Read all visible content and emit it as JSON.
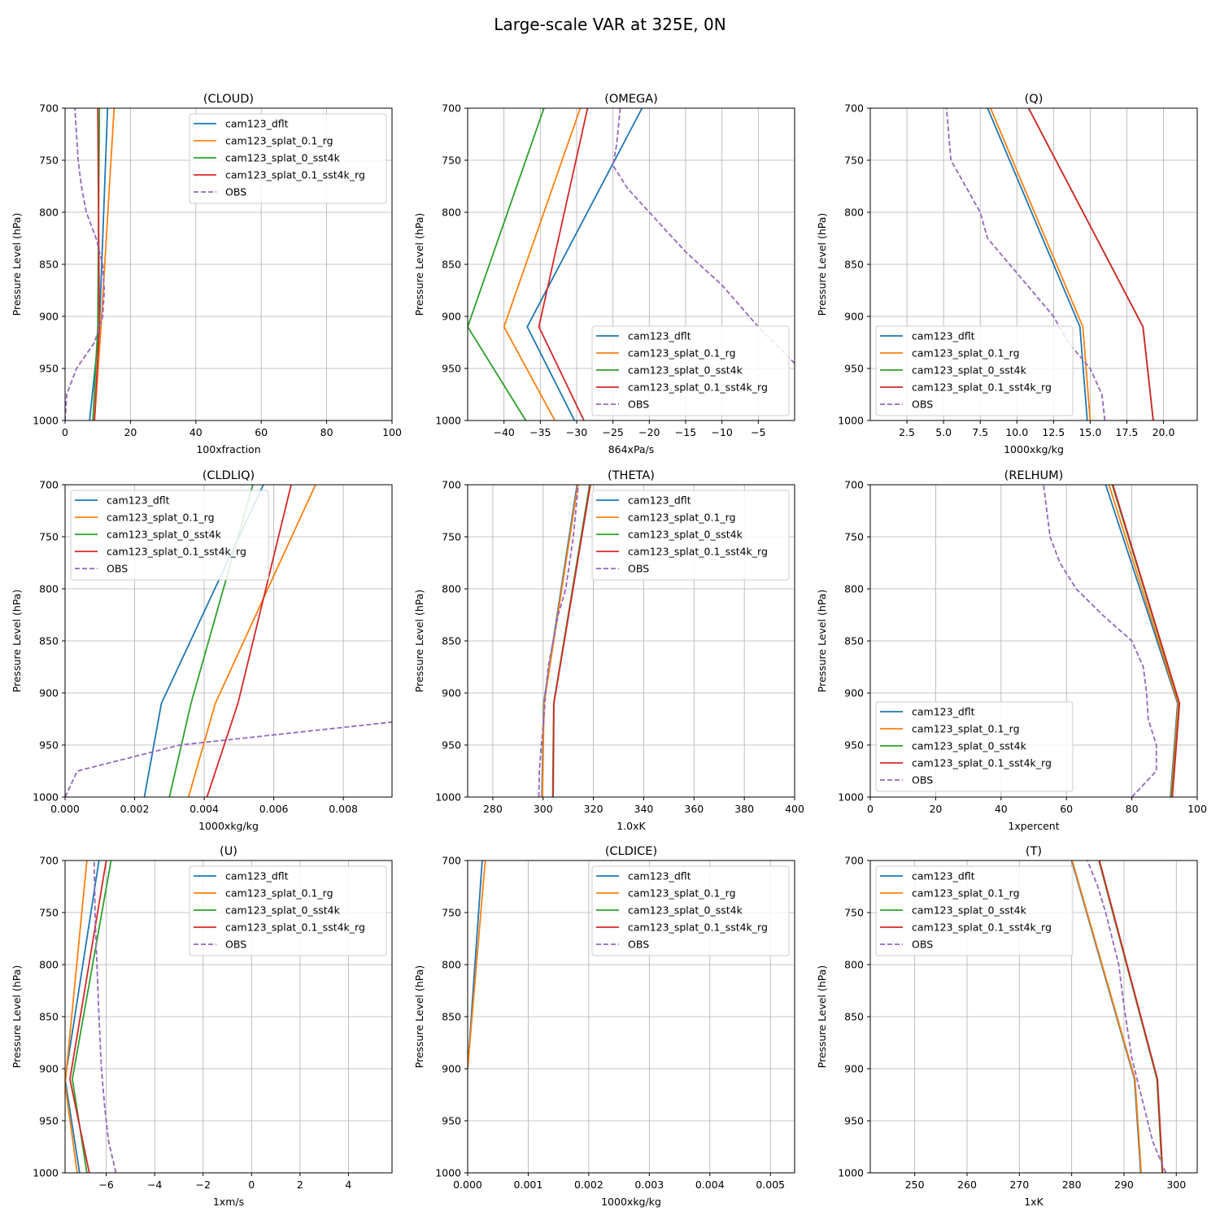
{
  "suptitle": "Large-scale VAR at 325E, 0N",
  "colors": {
    "cam123_dflt": "#1f77b4",
    "cam123_splat_0.1_rg": "#ff7f0e",
    "cam123_splat_0_sst4k": "#2ca02c",
    "cam123_splat_0.1_sst4k_rg": "#d62728",
    "OBS": "#9467bd"
  },
  "chart_data": [
    {
      "type": "line",
      "title": "(CLOUD)",
      "xlabel": "100xfraction",
      "ylabel": "Pressure Level (hPa)",
      "xlim": [
        0,
        100
      ],
      "ylim": [
        1000,
        700
      ],
      "xticks": [
        0,
        20,
        40,
        60,
        80,
        100
      ],
      "xticklabels": [
        "0",
        "20",
        "40",
        "60",
        "80",
        "100"
      ],
      "yticks": [
        700,
        750,
        800,
        850,
        900,
        950,
        1000
      ],
      "grid": true,
      "legend": "upper right",
      "series": [
        {
          "name": "cam123_dflt",
          "x": [
            7.5,
            10.5,
            13
          ],
          "y": [
            1000,
            910,
            700
          ]
        },
        {
          "name": "cam123_splat_0.1_rg",
          "x": [
            9,
            11,
            15
          ],
          "y": [
            1000,
            910,
            700
          ]
        },
        {
          "name": "cam123_splat_0_sst4k",
          "x": [
            8.5,
            10,
            10.5
          ],
          "y": [
            1000,
            910,
            700
          ]
        },
        {
          "name": "cam123_splat_0.1_sst4k_rg",
          "x": [
            9,
            10.5,
            10
          ],
          "y": [
            1000,
            910,
            700
          ]
        },
        {
          "name": "OBS",
          "x": [
            0,
            0.5,
            3.5,
            9,
            11.5,
            12,
            11.5,
            9.5,
            6.5,
            5,
            4,
            3
          ],
          "y": [
            1000,
            975,
            950,
            925,
            900,
            875,
            850,
            825,
            800,
            775,
            750,
            700
          ]
        }
      ]
    },
    {
      "type": "line",
      "title": "(OMEGA)",
      "xlabel": "864xPa/s",
      "ylabel": "Pressure Level (hPa)",
      "xlim": [
        -45,
        0
      ],
      "ylim": [
        1000,
        700
      ],
      "xticks": [
        -40,
        -35,
        -30,
        -25,
        -20,
        -15,
        -10,
        -5
      ],
      "xticklabels": [
        "−40",
        "−35",
        "−30",
        "−25",
        "−20",
        "−15",
        "−10",
        "−5"
      ],
      "yticks": [
        700,
        750,
        800,
        850,
        900,
        950,
        1000
      ],
      "grid": true,
      "legend": "lower right",
      "series": [
        {
          "name": "cam123_dflt",
          "x": [
            -30.3,
            -36.8,
            -21
          ],
          "y": [
            1000,
            910,
            700
          ]
        },
        {
          "name": "cam123_splat_0.1_rg",
          "x": [
            -33,
            -40,
            -29.5
          ],
          "y": [
            1000,
            910,
            700
          ]
        },
        {
          "name": "cam123_splat_0_sst4k",
          "x": [
            -37,
            -45,
            -34.5
          ],
          "y": [
            1000,
            910,
            700
          ]
        },
        {
          "name": "cam123_splat_0.1_sst4k_rg",
          "x": [
            -29,
            -35.2,
            -28.5
          ],
          "y": [
            1000,
            910,
            700
          ]
        },
        {
          "name": "OBS",
          "x": [
            0,
            -5,
            -10,
            -15,
            -20,
            -23,
            -25,
            -24.5,
            -24
          ],
          "y": [
            945,
            910,
            870,
            838,
            800,
            777,
            755,
            735,
            700
          ]
        }
      ]
    },
    {
      "type": "line",
      "title": "(Q)",
      "xlabel": "1000xkg/kg",
      "ylabel": "Pressure Level (hPa)",
      "xlim": [
        0,
        22.3
      ],
      "ylim": [
        1000,
        700
      ],
      "xticks": [
        2.5,
        5.0,
        7.5,
        10.0,
        12.5,
        15.0,
        17.5,
        20.0
      ],
      "xticklabels": [
        "2.5",
        "5.0",
        "7.5",
        "10.0",
        "12.5",
        "15.0",
        "17.5",
        "20.0"
      ],
      "yticks": [
        700,
        750,
        800,
        850,
        900,
        950,
        1000
      ],
      "grid": true,
      "legend": "lower left",
      "series": [
        {
          "name": "cam123_dflt",
          "x": [
            14.8,
            14.3,
            8
          ],
          "y": [
            1000,
            910,
            700
          ]
        },
        {
          "name": "cam123_splat_0.1_rg",
          "x": [
            15,
            14.5,
            8.2
          ],
          "y": [
            1000,
            910,
            700
          ]
        },
        {
          "name": "cam123_splat_0_sst4k",
          "x": [
            19.3,
            18.6,
            10.8
          ],
          "y": [
            1000,
            910,
            700
          ]
        },
        {
          "name": "cam123_splat_0.1_sst4k_rg",
          "x": [
            19.3,
            18.6,
            10.8
          ],
          "y": [
            1000,
            910,
            700
          ]
        },
        {
          "name": "OBS",
          "x": [
            16,
            15.8,
            15,
            13.5,
            12.5,
            11,
            9.5,
            8,
            7.5,
            6.5,
            5.5,
            5.2
          ],
          "y": [
            1000,
            975,
            950,
            925,
            900,
            875,
            850,
            825,
            800,
            775,
            750,
            700
          ]
        }
      ]
    },
    {
      "type": "line",
      "title": "(CLDLIQ)",
      "xlabel": "1000xkg/kg",
      "ylabel": "Pressure Level (hPa)",
      "xlim": [
        0,
        0.0094
      ],
      "ylim": [
        1000,
        700
      ],
      "xticks": [
        0,
        0.002,
        0.004,
        0.006,
        0.008
      ],
      "xticklabels": [
        "0.000",
        "0.002",
        "0.004",
        "0.006",
        "0.008"
      ],
      "yticks": [
        700,
        750,
        800,
        850,
        900,
        950,
        1000
      ],
      "grid": true,
      "legend": "upper left",
      "series": [
        {
          "name": "cam123_dflt",
          "x": [
            0.00228,
            0.00277,
            0.0057
          ],
          "y": [
            1000,
            910,
            700
          ]
        },
        {
          "name": "cam123_splat_0.1_rg",
          "x": [
            0.00355,
            0.00432,
            0.0072
          ],
          "y": [
            1000,
            910,
            700
          ]
        },
        {
          "name": "cam123_splat_0_sst4k",
          "x": [
            0.003,
            0.00362,
            0.0054
          ],
          "y": [
            1000,
            910,
            700
          ]
        },
        {
          "name": "cam123_splat_0.1_sst4k_rg",
          "x": [
            0.00408,
            0.00497,
            0.0065
          ],
          "y": [
            1000,
            910,
            700
          ]
        },
        {
          "name": "OBS",
          "x": [
            0,
            0.00035,
            0.0033,
            0.0094
          ],
          "y": [
            1000,
            975,
            950,
            928
          ]
        }
      ]
    },
    {
      "type": "line",
      "title": "(THETA)",
      "xlabel": "1.0xK",
      "ylabel": "Pressure Level (hPa)",
      "xlim": [
        270,
        400
      ],
      "ylim": [
        1000,
        700
      ],
      "xticks": [
        280,
        300,
        320,
        340,
        360,
        380,
        400
      ],
      "xticklabels": [
        "280",
        "300",
        "320",
        "340",
        "360",
        "380",
        "400"
      ],
      "yticks": [
        700,
        750,
        800,
        850,
        900,
        950,
        1000
      ],
      "grid": true,
      "legend": "upper right",
      "series": [
        {
          "name": "cam123_dflt",
          "x": [
            299.5,
            300.2,
            313.5
          ],
          "y": [
            1000,
            910,
            700
          ]
        },
        {
          "name": "cam123_splat_0.1_rg",
          "x": [
            299.7,
            300.4,
            313.8
          ],
          "y": [
            1000,
            910,
            700
          ]
        },
        {
          "name": "cam123_splat_0_sst4k",
          "x": [
            303.8,
            304.2,
            318.5
          ],
          "y": [
            1000,
            910,
            700
          ]
        },
        {
          "name": "cam123_splat_0.1_sst4k_rg",
          "x": [
            304,
            304.3,
            318.8
          ],
          "y": [
            1000,
            910,
            700
          ]
        },
        {
          "name": "OBS",
          "x": [
            298.3,
            298.5,
            299.3,
            300.3,
            301,
            302,
            304,
            306,
            309,
            312,
            314
          ],
          "y": [
            1000,
            975,
            950,
            925,
            900,
            875,
            850,
            825,
            800,
            750,
            700
          ]
        }
      ]
    },
    {
      "type": "line",
      "title": "(RELHUM)",
      "xlabel": "1xpercent",
      "ylabel": "Pressure Level (hPa)",
      "xlim": [
        0,
        100
      ],
      "ylim": [
        1000,
        700
      ],
      "xticks": [
        0,
        20,
        40,
        60,
        80,
        100
      ],
      "xticklabels": [
        "0",
        "20",
        "40",
        "60",
        "80",
        "100"
      ],
      "yticks": [
        700,
        750,
        800,
        850,
        900,
        950,
        1000
      ],
      "grid": true,
      "legend": "lower left",
      "series": [
        {
          "name": "cam123_dflt",
          "x": [
            91.8,
            94,
            72
          ],
          "y": [
            1000,
            910,
            700
          ]
        },
        {
          "name": "cam123_splat_0.1_rg",
          "x": [
            92,
            94.2,
            73
          ],
          "y": [
            1000,
            910,
            700
          ]
        },
        {
          "name": "cam123_splat_0_sst4k",
          "x": [
            92.2,
            94.5,
            74
          ],
          "y": [
            1000,
            910,
            700
          ]
        },
        {
          "name": "cam123_splat_0.1_sst4k_rg",
          "x": [
            92.4,
            94.6,
            74.2
          ],
          "y": [
            1000,
            910,
            700
          ]
        },
        {
          "name": "OBS",
          "x": [
            80,
            87.5,
            87.5,
            85,
            84.5,
            83.5,
            80,
            71,
            63,
            58,
            55,
            53
          ],
          "y": [
            1000,
            975,
            950,
            925,
            900,
            875,
            850,
            825,
            800,
            775,
            750,
            700
          ]
        }
      ]
    },
    {
      "type": "line",
      "title": "(U)",
      "xlabel": "1xm/s",
      "ylabel": "Pressure Level (hPa)",
      "xlim": [
        -7.7,
        5.8
      ],
      "ylim": [
        1000,
        700
      ],
      "xticks": [
        -6,
        -4,
        -2,
        0,
        2,
        4
      ],
      "xticklabels": [
        "−6",
        "−4",
        "−2",
        "0",
        "2",
        "4"
      ],
      "yticks": [
        700,
        750,
        800,
        850,
        900,
        950,
        1000
      ],
      "grid": true,
      "legend": "upper right",
      "series": [
        {
          "name": "cam123_dflt",
          "x": [
            -7.1,
            -7.7,
            -6.3
          ],
          "y": [
            1000,
            910,
            700
          ]
        },
        {
          "name": "cam123_splat_0.1_rg",
          "x": [
            -7.2,
            -7.7,
            -6.8
          ],
          "y": [
            1000,
            915,
            700
          ]
        },
        {
          "name": "cam123_splat_0_sst4k",
          "x": [
            -6.8,
            -7.4,
            -5.8
          ],
          "y": [
            1000,
            910,
            700
          ]
        },
        {
          "name": "cam123_splat_0.1_sst4k_rg",
          "x": [
            -6.7,
            -7.5,
            -6
          ],
          "y": [
            1000,
            910,
            700
          ]
        },
        {
          "name": "OBS",
          "x": [
            -5.6,
            -5.9,
            -6.05,
            -6.2,
            -6.3,
            -6.45,
            -6.5
          ],
          "y": [
            1000,
            970,
            940,
            900,
            850,
            760,
            700
          ]
        }
      ]
    },
    {
      "type": "line",
      "title": "(CLDICE)",
      "xlabel": "1000xkg/kg",
      "ylabel": "Pressure Level (hPa)",
      "xlim": [
        0,
        0.0054
      ],
      "ylim": [
        1000,
        700
      ],
      "xticks": [
        0,
        0.001,
        0.002,
        0.003,
        0.004,
        0.005
      ],
      "xticklabels": [
        "0.000",
        "0.001",
        "0.002",
        "0.003",
        "0.004",
        "0.005"
      ],
      "yticks": [
        700,
        750,
        800,
        850,
        900,
        950,
        1000
      ],
      "grid": true,
      "legend": "upper right",
      "series": [
        {
          "name": "cam123_dflt",
          "x": [
            0,
            0.00024
          ],
          "y": [
            900,
            700
          ]
        },
        {
          "name": "cam123_splat_0.1_rg",
          "x": [
            0,
            0.00029
          ],
          "y": [
            900,
            700
          ]
        },
        {
          "name": "cam123_splat_0_sst4k",
          "x": [],
          "y": []
        },
        {
          "name": "cam123_splat_0.1_sst4k_rg",
          "x": [],
          "y": []
        },
        {
          "name": "OBS",
          "x": [],
          "y": []
        }
      ]
    },
    {
      "type": "line",
      "title": "(T)",
      "xlabel": "1xK",
      "ylabel": "Pressure Level (hPa)",
      "xlim": [
        241.5,
        304
      ],
      "ylim": [
        1000,
        700
      ],
      "xticks": [
        250,
        260,
        270,
        280,
        290,
        300
      ],
      "xticklabels": [
        "250",
        "260",
        "270",
        "280",
        "290",
        "300"
      ],
      "yticks": [
        700,
        750,
        800,
        850,
        900,
        950,
        1000
      ],
      "grid": true,
      "legend": "upper left",
      "series": [
        {
          "name": "cam123_dflt",
          "x": [
            293.2,
            292,
            280
          ],
          "y": [
            1000,
            910,
            700
          ]
        },
        {
          "name": "cam123_splat_0.1_rg",
          "x": [
            293.3,
            292.1,
            280.1
          ],
          "y": [
            1000,
            910,
            700
          ]
        },
        {
          "name": "cam123_splat_0_sst4k",
          "x": [
            297.3,
            296.3,
            285.2
          ],
          "y": [
            1000,
            910,
            700
          ]
        },
        {
          "name": "cam123_splat_0.1_sst4k_rg",
          "x": [
            297.4,
            296.4,
            285.3
          ],
          "y": [
            1000,
            910,
            700
          ]
        },
        {
          "name": "OBS",
          "x": [
            298,
            295.5,
            293.5,
            291.5,
            290,
            289,
            286.5,
            285,
            283
          ],
          "y": [
            1000,
            970,
            930,
            890,
            840,
            800,
            750,
            725,
            700
          ]
        }
      ]
    }
  ]
}
